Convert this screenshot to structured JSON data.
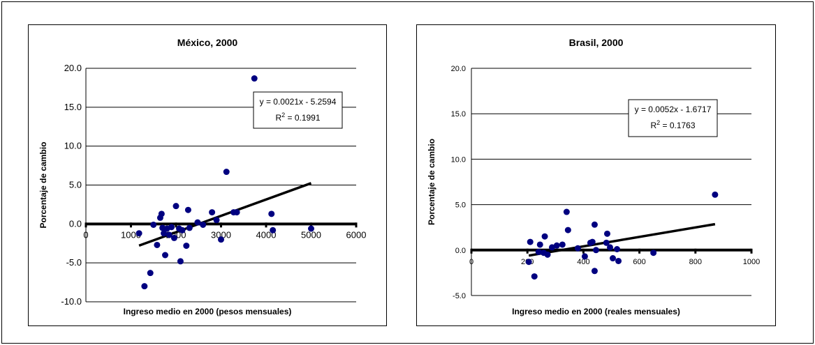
{
  "chart_data": [
    {
      "type": "scatter",
      "title": "México, 2000",
      "xlabel": "Ingreso medio en 2000 (pesos mensuales)",
      "ylabel": "Porcentaje de cambio",
      "xlim": [
        0,
        6000
      ],
      "ylim": [
        -10,
        20
      ],
      "xticks": [
        0,
        1000,
        2000,
        3000,
        4000,
        5000,
        6000
      ],
      "xtick_labels": [
        "0",
        "1000",
        "2000",
        "3000",
        "4000",
        "5000",
        "6000"
      ],
      "yticks": [
        -10,
        -5,
        0,
        5,
        10,
        15,
        20
      ],
      "ytick_labels": [
        "-10.0",
        "-5.0",
        "0.0",
        "5.0",
        "10.0",
        "15.0",
        "20.0"
      ],
      "grid": "horizontal",
      "marker_color": "#000080",
      "points": [
        {
          "x": 1180,
          "y": -1.2
        },
        {
          "x": 1300,
          "y": -8.0
        },
        {
          "x": 1430,
          "y": -6.3
        },
        {
          "x": 1500,
          "y": -0.1
        },
        {
          "x": 1580,
          "y": -2.7
        },
        {
          "x": 1650,
          "y": 0.8
        },
        {
          "x": 1680,
          "y": 1.3
        },
        {
          "x": 1700,
          "y": -0.5
        },
        {
          "x": 1730,
          "y": -1.2
        },
        {
          "x": 1760,
          "y": -4.0
        },
        {
          "x": 1800,
          "y": -0.6
        },
        {
          "x": 1850,
          "y": -1.4
        },
        {
          "x": 1900,
          "y": -0.4
        },
        {
          "x": 1960,
          "y": -1.8
        },
        {
          "x": 2000,
          "y": 2.3
        },
        {
          "x": 2070,
          "y": -0.6
        },
        {
          "x": 2100,
          "y": -4.8
        },
        {
          "x": 2140,
          "y": -0.8
        },
        {
          "x": 2230,
          "y": -2.8
        },
        {
          "x": 2270,
          "y": 1.8
        },
        {
          "x": 2300,
          "y": -0.5
        },
        {
          "x": 2480,
          "y": 0.2
        },
        {
          "x": 2600,
          "y": -0.1
        },
        {
          "x": 2800,
          "y": 1.5
        },
        {
          "x": 2900,
          "y": 0.5
        },
        {
          "x": 3000,
          "y": -2.0
        },
        {
          "x": 3120,
          "y": 6.7
        },
        {
          "x": 3280,
          "y": 1.5
        },
        {
          "x": 3350,
          "y": 1.5
        },
        {
          "x": 3740,
          "y": 18.7
        },
        {
          "x": 4120,
          "y": 1.3
        },
        {
          "x": 4150,
          "y": -0.8
        },
        {
          "x": 5000,
          "y": -0.6
        }
      ],
      "trendline": {
        "slope": 0.0021,
        "intercept": -5.2594,
        "x_range": [
          1180,
          5000
        ]
      },
      "equation": "y = 0.0021x - 5.2594",
      "r2_label": "R",
      "r2_exp": "2",
      "r2_value": " = 0.1991"
    },
    {
      "type": "scatter",
      "title": "Brasil, 2000",
      "xlabel": "Ingreso medio en 2000 (reales mensuales)",
      "ylabel": "Porcentaje de cambio",
      "xlim": [
        0,
        1000
      ],
      "ylim": [
        -5,
        20
      ],
      "xticks": [
        0,
        200,
        400,
        600,
        800,
        1000
      ],
      "xtick_labels": [
        "0",
        "200",
        "400",
        "600",
        "800",
        "1000"
      ],
      "yticks": [
        -5,
        0,
        5,
        10,
        15,
        20
      ],
      "ytick_labels": [
        "-5.0",
        "0.0",
        "5.0",
        "10.0",
        "15.0",
        "20.0"
      ],
      "grid": "horizontal",
      "marker_color": "#000080",
      "points": [
        {
          "x": 205,
          "y": -1.3
        },
        {
          "x": 210,
          "y": 0.9
        },
        {
          "x": 225,
          "y": -2.9
        },
        {
          "x": 240,
          "y": -0.2
        },
        {
          "x": 245,
          "y": 0.6
        },
        {
          "x": 258,
          "y": -0.3
        },
        {
          "x": 262,
          "y": 1.5
        },
        {
          "x": 272,
          "y": -0.5
        },
        {
          "x": 288,
          "y": 0.3
        },
        {
          "x": 305,
          "y": 0.5
        },
        {
          "x": 325,
          "y": 0.6
        },
        {
          "x": 340,
          "y": 4.2
        },
        {
          "x": 345,
          "y": 2.2
        },
        {
          "x": 380,
          "y": 0.2
        },
        {
          "x": 405,
          "y": -0.7
        },
        {
          "x": 425,
          "y": 0.8
        },
        {
          "x": 432,
          "y": 0.9
        },
        {
          "x": 440,
          "y": -2.3
        },
        {
          "x": 440,
          "y": 2.8
        },
        {
          "x": 445,
          "y": 0.0
        },
        {
          "x": 482,
          "y": 0.8
        },
        {
          "x": 485,
          "y": 1.8
        },
        {
          "x": 495,
          "y": 0.3
        },
        {
          "x": 505,
          "y": -0.9
        },
        {
          "x": 520,
          "y": 0.1
        },
        {
          "x": 525,
          "y": -1.2
        },
        {
          "x": 650,
          "y": -0.3
        },
        {
          "x": 870,
          "y": 6.1
        }
      ],
      "trendline": {
        "slope": 0.0052,
        "intercept": -1.6717,
        "x_range": [
          205,
          870
        ]
      },
      "equation": "y = 0.0052x - 1.6717",
      "r2_label": "R",
      "r2_exp": "2",
      "r2_value": " = 0.1763"
    }
  ]
}
